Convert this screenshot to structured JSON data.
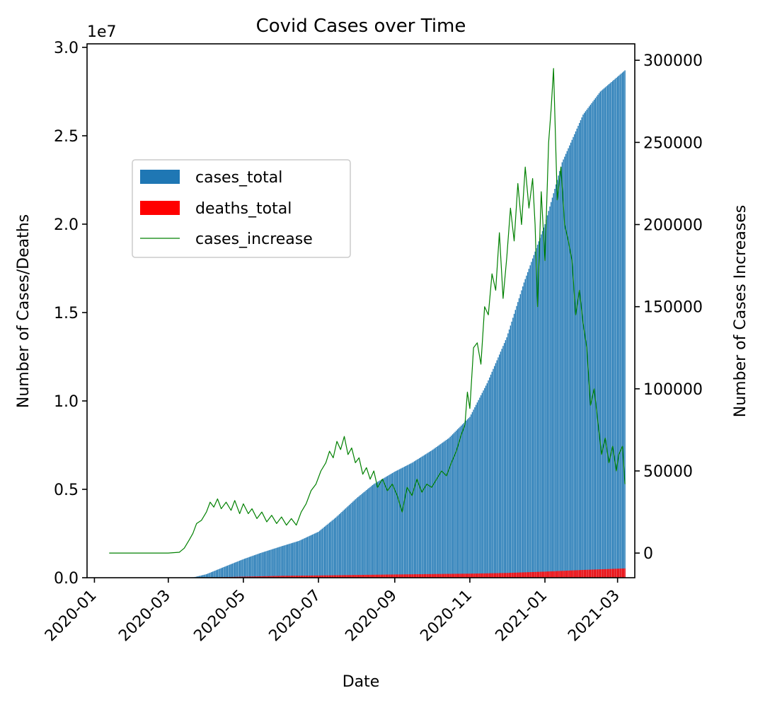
{
  "chart_data": {
    "type": "bar",
    "title": "Covid Cases over Time",
    "xlabel": "Date",
    "ylabel": "Number of Cases/Deaths",
    "ylabel_right": "Number of Cases Increases",
    "y_offset_text": "1e7",
    "x_ticks": [
      "2020-01",
      "2020-03",
      "2020-05",
      "2020-07",
      "2020-09",
      "2020-11",
      "2021-01",
      "2021-03"
    ],
    "x_tick_dates": [
      "2020-01-01",
      "2020-03-01",
      "2020-05-01",
      "2020-07-01",
      "2020-09-01",
      "2020-11-01",
      "2021-01-01",
      "2021-03-01"
    ],
    "y_ticks_left": [
      "0.0",
      "0.5",
      "1.0",
      "1.5",
      "2.0",
      "2.5",
      "3.0"
    ],
    "y_tick_values_left": [
      0,
      5000000,
      10000000,
      15000000,
      20000000,
      25000000,
      30000000
    ],
    "y_ticks_right": [
      "0",
      "50000",
      "100000",
      "150000",
      "200000",
      "250000",
      "300000"
    ],
    "y_tick_values_right": [
      0,
      50000,
      100000,
      150000,
      200000,
      250000,
      300000
    ],
    "xlim": [
      "2019-12-26",
      "2021-03-15"
    ],
    "ylim_left": [
      0,
      30200000
    ],
    "ylim_right": [
      -15000,
      310000
    ],
    "x_range": [
      "2020-01-13",
      "2021-03-07"
    ],
    "legend": {
      "position": "upper-left"
    },
    "colors": {
      "cases_total": "#1f77b4",
      "deaths_total": "#ff0000",
      "cases_increase": "#008000"
    },
    "series": [
      {
        "name": "cases_total",
        "kind": "bar",
        "color": "#1f77b4",
        "points": [
          [
            "2020-01-13",
            0
          ],
          [
            "2020-03-01",
            30
          ],
          [
            "2020-03-15",
            3000
          ],
          [
            "2020-03-22",
            30000
          ],
          [
            "2020-04-01",
            200000
          ],
          [
            "2020-04-15",
            600000
          ],
          [
            "2020-05-01",
            1050000
          ],
          [
            "2020-05-15",
            1400000
          ],
          [
            "2020-06-01",
            1780000
          ],
          [
            "2020-06-15",
            2080000
          ],
          [
            "2020-07-01",
            2600000
          ],
          [
            "2020-07-15",
            3400000
          ],
          [
            "2020-08-01",
            4500000
          ],
          [
            "2020-08-15",
            5300000
          ],
          [
            "2020-09-01",
            6000000
          ],
          [
            "2020-09-15",
            6500000
          ],
          [
            "2020-10-01",
            7200000
          ],
          [
            "2020-10-15",
            7900000
          ],
          [
            "2020-11-01",
            9100000
          ],
          [
            "2020-11-15",
            11000000
          ],
          [
            "2020-12-01",
            13600000
          ],
          [
            "2020-12-15",
            16700000
          ],
          [
            "2021-01-01",
            20000000
          ],
          [
            "2021-01-15",
            23500000
          ],
          [
            "2021-02-01",
            26200000
          ],
          [
            "2021-02-15",
            27500000
          ],
          [
            "2021-03-07",
            28700000
          ]
        ]
      },
      {
        "name": "deaths_total",
        "kind": "bar",
        "color": "#ff0000",
        "points": [
          [
            "2020-01-13",
            0
          ],
          [
            "2020-03-15",
            100
          ],
          [
            "2020-04-01",
            5000
          ],
          [
            "2020-05-01",
            60000
          ],
          [
            "2020-06-01",
            105000
          ],
          [
            "2020-07-01",
            127000
          ],
          [
            "2020-08-01",
            155000
          ],
          [
            "2020-09-01",
            183000
          ],
          [
            "2020-10-01",
            207000
          ],
          [
            "2020-11-01",
            230000
          ],
          [
            "2020-12-01",
            270000
          ],
          [
            "2021-01-01",
            345000
          ],
          [
            "2021-02-01",
            440000
          ],
          [
            "2021-03-07",
            525000
          ]
        ]
      },
      {
        "name": "cases_increase",
        "kind": "line",
        "color": "#008000",
        "points": [
          [
            "2020-01-13",
            0
          ],
          [
            "2020-03-01",
            0
          ],
          [
            "2020-03-10",
            500
          ],
          [
            "2020-03-14",
            3000
          ],
          [
            "2020-03-18",
            8000
          ],
          [
            "2020-03-21",
            12000
          ],
          [
            "2020-03-24",
            18000
          ],
          [
            "2020-03-28",
            20000
          ],
          [
            "2020-04-01",
            25000
          ],
          [
            "2020-04-04",
            31000
          ],
          [
            "2020-04-07",
            28000
          ],
          [
            "2020-04-10",
            33000
          ],
          [
            "2020-04-13",
            27000
          ],
          [
            "2020-04-17",
            31000
          ],
          [
            "2020-04-21",
            26000
          ],
          [
            "2020-04-24",
            32000
          ],
          [
            "2020-04-28",
            24000
          ],
          [
            "2020-05-01",
            30000
          ],
          [
            "2020-05-05",
            24000
          ],
          [
            "2020-05-08",
            27000
          ],
          [
            "2020-05-12",
            21000
          ],
          [
            "2020-05-16",
            25000
          ],
          [
            "2020-05-20",
            19000
          ],
          [
            "2020-05-24",
            23000
          ],
          [
            "2020-05-28",
            18000
          ],
          [
            "2020-06-01",
            22000
          ],
          [
            "2020-06-05",
            17000
          ],
          [
            "2020-06-09",
            21000
          ],
          [
            "2020-06-13",
            17000
          ],
          [
            "2020-06-17",
            25000
          ],
          [
            "2020-06-21",
            30000
          ],
          [
            "2020-06-25",
            38000
          ],
          [
            "2020-06-29",
            42000
          ],
          [
            "2020-07-03",
            50000
          ],
          [
            "2020-07-07",
            55000
          ],
          [
            "2020-07-10",
            62000
          ],
          [
            "2020-07-13",
            58000
          ],
          [
            "2020-07-16",
            68000
          ],
          [
            "2020-07-19",
            63000
          ],
          [
            "2020-07-22",
            71000
          ],
          [
            "2020-07-25",
            60000
          ],
          [
            "2020-07-28",
            64000
          ],
          [
            "2020-07-31",
            55000
          ],
          [
            "2020-08-03",
            58000
          ],
          [
            "2020-08-06",
            48000
          ],
          [
            "2020-08-09",
            52000
          ],
          [
            "2020-08-12",
            45000
          ],
          [
            "2020-08-15",
            50000
          ],
          [
            "2020-08-18",
            40000
          ],
          [
            "2020-08-22",
            45000
          ],
          [
            "2020-08-26",
            38000
          ],
          [
            "2020-08-30",
            42000
          ],
          [
            "2020-09-03",
            35000
          ],
          [
            "2020-09-07",
            25000
          ],
          [
            "2020-09-11",
            40000
          ],
          [
            "2020-09-15",
            35000
          ],
          [
            "2020-09-19",
            45000
          ],
          [
            "2020-09-23",
            37000
          ],
          [
            "2020-09-27",
            42000
          ],
          [
            "2020-10-01",
            40000
          ],
          [
            "2020-10-05",
            45000
          ],
          [
            "2020-10-09",
            50000
          ],
          [
            "2020-10-13",
            47000
          ],
          [
            "2020-10-17",
            55000
          ],
          [
            "2020-10-21",
            62000
          ],
          [
            "2020-10-25",
            72000
          ],
          [
            "2020-10-28",
            78000
          ],
          [
            "2020-10-30",
            98000
          ],
          [
            "2020-11-01",
            88000
          ],
          [
            "2020-11-04",
            125000
          ],
          [
            "2020-11-07",
            128000
          ],
          [
            "2020-11-10",
            115000
          ],
          [
            "2020-11-13",
            150000
          ],
          [
            "2020-11-16",
            145000
          ],
          [
            "2020-11-19",
            170000
          ],
          [
            "2020-11-22",
            160000
          ],
          [
            "2020-11-25",
            195000
          ],
          [
            "2020-11-28",
            155000
          ],
          [
            "2020-12-01",
            180000
          ],
          [
            "2020-12-04",
            210000
          ],
          [
            "2020-12-07",
            190000
          ],
          [
            "2020-12-10",
            225000
          ],
          [
            "2020-12-13",
            200000
          ],
          [
            "2020-12-16",
            235000
          ],
          [
            "2020-12-19",
            210000
          ],
          [
            "2020-12-22",
            228000
          ],
          [
            "2020-12-24",
            200000
          ],
          [
            "2020-12-26",
            150000
          ],
          [
            "2020-12-29",
            220000
          ],
          [
            "2021-01-01",
            178000
          ],
          [
            "2021-01-04",
            250000
          ],
          [
            "2021-01-06",
            270000
          ],
          [
            "2021-01-08",
            295000
          ],
          [
            "2021-01-11",
            215000
          ],
          [
            "2021-01-14",
            235000
          ],
          [
            "2021-01-17",
            200000
          ],
          [
            "2021-01-20",
            190000
          ],
          [
            "2021-01-23",
            178000
          ],
          [
            "2021-01-26",
            145000
          ],
          [
            "2021-01-29",
            160000
          ],
          [
            "2021-02-01",
            140000
          ],
          [
            "2021-02-04",
            125000
          ],
          [
            "2021-02-07",
            90000
          ],
          [
            "2021-02-10",
            100000
          ],
          [
            "2021-02-13",
            80000
          ],
          [
            "2021-02-16",
            60000
          ],
          [
            "2021-02-19",
            70000
          ],
          [
            "2021-02-22",
            55000
          ],
          [
            "2021-02-25",
            65000
          ],
          [
            "2021-02-28",
            50000
          ],
          [
            "2021-03-02",
            60000
          ],
          [
            "2021-03-05",
            65000
          ],
          [
            "2021-03-07",
            42000
          ]
        ]
      }
    ]
  }
}
